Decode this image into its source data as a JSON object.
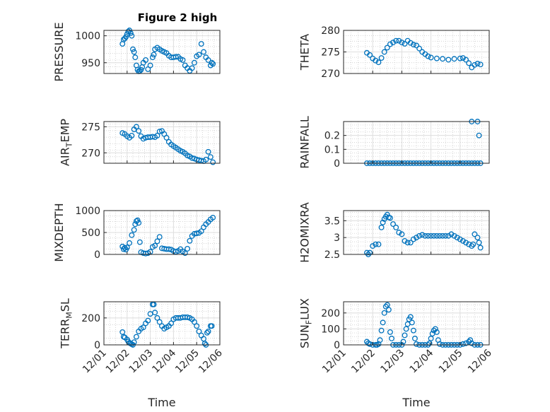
{
  "figure": {
    "title": "Figure 2 high",
    "marker_color": "#0072BD",
    "x_axis": {
      "label": "Time",
      "range_days": [
        1,
        6
      ],
      "tick_labels": [
        "12/01",
        "12/02",
        "12/03",
        "12/04",
        "12/05",
        "12/06"
      ]
    }
  },
  "chart_data": [
    {
      "type": "scatter",
      "title": "Figure 2 high",
      "ylabel": "PRESSURE",
      "ylim": [
        930,
        1010
      ],
      "yticks": [
        950,
        1000
      ],
      "grid": true,
      "x": [
        1.8,
        1.85,
        1.9,
        1.95,
        2.0,
        2.05,
        2.1,
        2.15,
        2.2,
        2.25,
        2.3,
        2.35,
        2.4,
        2.45,
        2.5,
        2.55,
        2.6,
        2.65,
        2.7,
        2.8,
        2.9,
        3.0,
        3.1,
        3.15,
        3.2,
        3.3,
        3.4,
        3.5,
        3.6,
        3.7,
        3.8,
        3.9,
        4.0,
        4.1,
        4.2,
        4.3,
        4.4,
        4.5,
        4.6,
        4.7,
        4.8,
        4.9,
        5.0,
        5.1,
        5.2,
        5.3,
        5.4,
        5.5,
        5.6,
        5.65,
        5.7
      ],
      "y": [
        985,
        993,
        995,
        998,
        1003,
        1008,
        1010,
        1005,
        1000,
        975,
        970,
        960,
        945,
        937,
        934,
        935,
        937,
        942,
        950,
        955,
        938,
        945,
        960,
        965,
        975,
        978,
        975,
        972,
        970,
        968,
        963,
        960,
        960,
        961,
        961,
        957,
        955,
        945,
        940,
        935,
        940,
        950,
        962,
        965,
        985,
        970,
        960,
        955,
        945,
        950,
        948
      ]
    },
    {
      "type": "scatter",
      "title": "",
      "ylabel": "THETA",
      "ylim": [
        270,
        280
      ],
      "yticks": [
        270,
        275,
        280
      ],
      "grid": true,
      "x": [
        1.8,
        1.9,
        2.0,
        2.1,
        2.2,
        2.3,
        2.4,
        2.5,
        2.6,
        2.7,
        2.8,
        2.9,
        3.0,
        3.1,
        3.2,
        3.3,
        3.4,
        3.5,
        3.6,
        3.7,
        3.8,
        3.9,
        4.0,
        4.2,
        4.4,
        4.6,
        4.8,
        5.0,
        5.1,
        5.2,
        5.3,
        5.4,
        5.5,
        5.6,
        5.7
      ],
      "y": [
        274.8,
        274.3,
        273.5,
        273.0,
        272.6,
        273.6,
        275.0,
        276.0,
        276.8,
        277.2,
        277.6,
        277.6,
        277.2,
        276.9,
        277.6,
        277.1,
        276.7,
        276.5,
        275.8,
        275.0,
        274.5,
        274.0,
        273.7,
        273.5,
        273.4,
        273.2,
        273.4,
        273.5,
        273.6,
        273.2,
        272.4,
        271.4,
        272.0,
        272.3,
        272.1
      ]
    },
    {
      "type": "scatter",
      "title": "",
      "ylabel": "AIR_TEMP",
      "ylim": [
        268,
        276
      ],
      "yticks": [
        270,
        275
      ],
      "grid": true,
      "x": [
        1.8,
        1.9,
        2.0,
        2.1,
        2.2,
        2.3,
        2.4,
        2.5,
        2.6,
        2.7,
        2.8,
        2.9,
        3.0,
        3.1,
        3.2,
        3.3,
        3.4,
        3.5,
        3.6,
        3.7,
        3.8,
        3.9,
        4.0,
        4.1,
        4.2,
        4.3,
        4.4,
        4.5,
        4.6,
        4.7,
        4.8,
        4.9,
        5.0,
        5.1,
        5.2,
        5.3,
        5.4,
        5.5,
        5.6,
        5.7
      ],
      "y": [
        273.8,
        273.6,
        273.2,
        272.9,
        273.3,
        274.5,
        275.0,
        274.2,
        273.2,
        272.7,
        272.9,
        273.0,
        273.0,
        273.1,
        273.0,
        273.3,
        274.1,
        274.2,
        273.6,
        272.9,
        272.1,
        271.6,
        271.3,
        271.0,
        270.7,
        270.4,
        270.2,
        269.9,
        269.5,
        269.3,
        269.0,
        268.9,
        268.7,
        268.6,
        268.5,
        268.4,
        268.7,
        270.2,
        269.2,
        268.2
      ]
    },
    {
      "type": "scatter",
      "title": "",
      "ylabel": "RAINFALL",
      "ylim": [
        0,
        0.3
      ],
      "yticks": [
        0,
        0.1,
        0.2
      ],
      "grid": true,
      "x": [
        1.8,
        1.9,
        2.0,
        2.1,
        2.2,
        2.3,
        2.4,
        2.5,
        2.6,
        2.7,
        2.8,
        2.9,
        3.0,
        3.1,
        3.2,
        3.3,
        3.4,
        3.5,
        3.6,
        3.7,
        3.8,
        3.9,
        4.0,
        4.1,
        4.2,
        4.3,
        4.4,
        4.5,
        4.6,
        4.7,
        4.8,
        4.9,
        5.0,
        5.1,
        5.2,
        5.3,
        5.4,
        5.5,
        5.6,
        5.7,
        5.4,
        5.6,
        5.65
      ],
      "y": [
        0,
        0,
        0,
        0,
        0,
        0,
        0,
        0,
        0,
        0,
        0,
        0,
        0,
        0,
        0,
        0,
        0,
        0,
        0,
        0,
        0,
        0,
        0,
        0,
        0,
        0,
        0,
        0,
        0,
        0,
        0,
        0,
        0,
        0,
        0,
        0,
        0,
        0,
        0,
        0,
        0.3,
        0.3,
        0.2
      ]
    },
    {
      "type": "scatter",
      "title": "",
      "ylabel": "MIXDEPTH",
      "ylim": [
        0,
        1000
      ],
      "yticks": [
        0,
        500,
        1000
      ],
      "grid": true,
      "x": [
        1.8,
        1.85,
        1.9,
        1.95,
        2.0,
        2.1,
        2.2,
        2.3,
        2.35,
        2.4,
        2.45,
        2.5,
        2.55,
        2.6,
        2.7,
        2.8,
        2.9,
        3.0,
        3.1,
        3.2,
        3.3,
        3.4,
        3.5,
        3.6,
        3.7,
        3.8,
        3.9,
        4.0,
        4.1,
        4.2,
        4.3,
        4.4,
        4.5,
        4.6,
        4.7,
        4.8,
        4.9,
        5.0,
        5.1,
        5.2,
        5.3,
        5.4,
        5.5,
        5.6,
        5.7
      ],
      "y": [
        180,
        120,
        150,
        110,
        160,
        260,
        440,
        560,
        690,
        760,
        780,
        720,
        280,
        50,
        30,
        20,
        30,
        60,
        170,
        200,
        300,
        400,
        140,
        130,
        120,
        120,
        110,
        80,
        60,
        80,
        120,
        70,
        30,
        130,
        310,
        420,
        470,
        480,
        490,
        530,
        620,
        690,
        740,
        800,
        840
      ]
    },
    {
      "type": "scatter",
      "title": "",
      "ylabel": "H2OMIXRA",
      "ylim": [
        2.5,
        3.8
      ],
      "yticks": [
        2.5,
        3,
        3.5
      ],
      "grid": true,
      "x": [
        1.8,
        1.85,
        1.9,
        2.0,
        2.1,
        2.2,
        2.3,
        2.35,
        2.4,
        2.45,
        2.5,
        2.55,
        2.6,
        2.7,
        2.8,
        2.9,
        3.0,
        3.1,
        3.2,
        3.3,
        3.4,
        3.5,
        3.6,
        3.7,
        3.8,
        3.9,
        4.0,
        4.1,
        4.2,
        4.3,
        4.4,
        4.5,
        4.6,
        4.7,
        4.8,
        4.9,
        5.0,
        5.1,
        5.2,
        5.3,
        5.4,
        5.45,
        5.5,
        5.6,
        5.65,
        5.7
      ],
      "y": [
        2.55,
        2.5,
        2.55,
        2.75,
        2.8,
        2.8,
        3.3,
        3.45,
        3.55,
        3.62,
        3.68,
        3.6,
        3.58,
        3.4,
        3.3,
        3.15,
        3.1,
        2.9,
        2.85,
        2.85,
        2.95,
        3.0,
        3.05,
        3.08,
        3.05,
        3.05,
        3.05,
        3.05,
        3.05,
        3.05,
        3.05,
        3.05,
        3.05,
        3.1,
        3.05,
        3.0,
        2.95,
        2.9,
        2.85,
        2.8,
        2.75,
        2.8,
        3.1,
        3.0,
        2.85,
        2.7
      ]
    },
    {
      "type": "scatter",
      "title": "",
      "ylabel": "TERR_MSL",
      "ylim": [
        0,
        320
      ],
      "yticks": [
        0,
        200
      ],
      "grid": true,
      "x": [
        1.8,
        1.85,
        1.9,
        2.0,
        2.05,
        2.1,
        2.15,
        2.2,
        2.25,
        2.3,
        2.4,
        2.5,
        2.6,
        2.7,
        2.8,
        2.9,
        3.0,
        3.1,
        3.15,
        3.2,
        3.3,
        3.4,
        3.5,
        3.6,
        3.7,
        3.8,
        3.9,
        4.0,
        4.1,
        4.2,
        4.3,
        4.4,
        4.5,
        4.6,
        4.7,
        4.8,
        4.9,
        5.0,
        5.1,
        5.2,
        5.3,
        5.35,
        5.4,
        5.45,
        5.5,
        5.6,
        5.65
      ],
      "y": [
        95,
        60,
        55,
        40,
        25,
        15,
        10,
        5,
        0,
        20,
        60,
        100,
        120,
        130,
        160,
        180,
        230,
        300,
        300,
        240,
        200,
        170,
        140,
        120,
        130,
        140,
        160,
        190,
        200,
        200,
        200,
        205,
        205,
        205,
        200,
        190,
        170,
        140,
        100,
        70,
        45,
        10,
        0,
        90,
        100,
        140,
        140
      ]
    },
    {
      "type": "scatter",
      "title": "",
      "ylabel": "SUN_FLUX",
      "ylim": [
        0,
        270
      ],
      "yticks": [
        0,
        100,
        200
      ],
      "grid": true,
      "x": [
        1.8,
        1.85,
        1.9,
        2.0,
        2.1,
        2.15,
        2.2,
        2.25,
        2.3,
        2.35,
        2.4,
        2.45,
        2.5,
        2.55,
        2.6,
        2.65,
        2.7,
        2.8,
        2.9,
        3.0,
        3.05,
        3.1,
        3.15,
        3.2,
        3.25,
        3.3,
        3.35,
        3.4,
        3.45,
        3.5,
        3.6,
        3.7,
        3.8,
        3.9,
        3.95,
        4.0,
        4.05,
        4.1,
        4.15,
        4.2,
        4.25,
        4.3,
        4.4,
        4.5,
        4.6,
        4.7,
        4.8,
        4.9,
        5.0,
        5.1,
        5.2,
        5.3,
        5.35,
        5.4,
        5.5,
        5.6,
        5.7
      ],
      "y": [
        20,
        10,
        5,
        0,
        0,
        0,
        5,
        30,
        90,
        140,
        200,
        240,
        250,
        220,
        80,
        40,
        0,
        0,
        0,
        0,
        20,
        60,
        100,
        130,
        160,
        175,
        140,
        90,
        40,
        5,
        0,
        0,
        0,
        0,
        10,
        40,
        70,
        90,
        100,
        80,
        30,
        5,
        0,
        0,
        0,
        0,
        0,
        0,
        0,
        5,
        10,
        20,
        30,
        10,
        0,
        0,
        0
      ]
    }
  ]
}
